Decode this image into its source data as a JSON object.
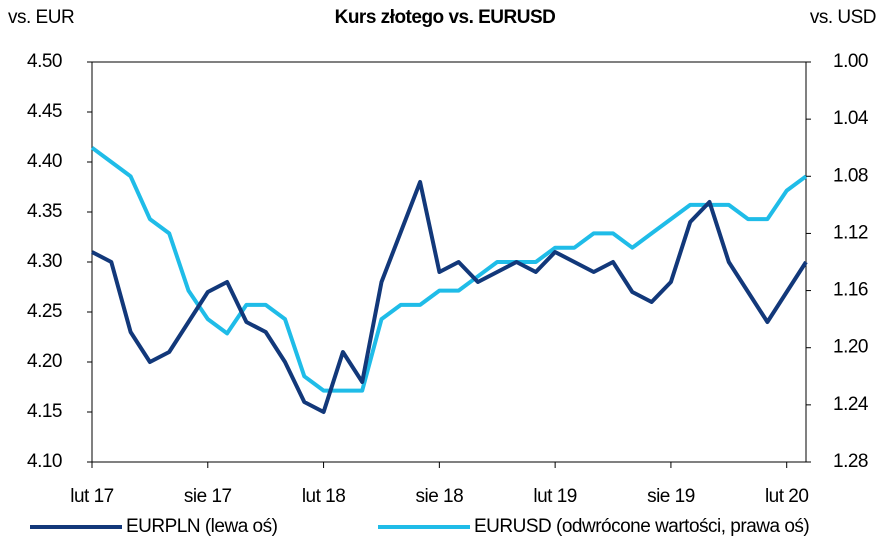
{
  "chart_data": {
    "type": "line",
    "title": "Kurs złotego vs. EURUSD",
    "y_label": "vs. EUR",
    "y2_label": "vs. USD",
    "categories": [
      "lut 17",
      null,
      null,
      null,
      null,
      null,
      "sie 17",
      null,
      null,
      null,
      null,
      null,
      "lut 18",
      null,
      null,
      null,
      null,
      null,
      "sie 18",
      null,
      null,
      null,
      null,
      null,
      "lut 19",
      null,
      null,
      null,
      null,
      null,
      "sie 19",
      null,
      null,
      null,
      null,
      null,
      "lut 20",
      null
    ],
    "series": [
      {
        "name": "EURPLN (lewa oś)",
        "color": "#12387a",
        "axis": "y",
        "values": [
          4.31,
          4.3,
          4.23,
          4.2,
          4.21,
          4.24,
          4.27,
          4.28,
          4.24,
          4.23,
          4.2,
          4.16,
          4.15,
          4.21,
          4.18,
          4.28,
          4.33,
          4.38,
          4.29,
          4.3,
          4.28,
          4.29,
          4.3,
          4.29,
          4.31,
          4.3,
          4.29,
          4.3,
          4.27,
          4.26,
          4.28,
          4.34,
          4.36,
          4.3,
          4.27,
          4.24,
          4.27,
          4.3
        ]
      },
      {
        "name": "EURUSD (odwrócone wartości, prawa oś)",
        "color": "#1fbce8",
        "axis": "y2",
        "values": [
          1.06,
          1.07,
          1.08,
          1.11,
          1.12,
          1.16,
          1.18,
          1.19,
          1.17,
          1.17,
          1.18,
          1.22,
          1.23,
          1.23,
          1.23,
          1.18,
          1.17,
          1.17,
          1.16,
          1.16,
          1.15,
          1.14,
          1.14,
          1.14,
          1.13,
          1.13,
          1.12,
          1.12,
          1.13,
          1.12,
          1.11,
          1.1,
          1.1,
          1.1,
          1.11,
          1.11,
          1.09,
          1.08
        ]
      }
    ],
    "ylim": [
      4.1,
      4.5
    ],
    "yticks": [
      {
        "value": 4.1,
        "label": "4.10"
      },
      4.15,
      {
        "value": 4.2,
        "label": "4.20"
      },
      4.25,
      {
        "value": 4.3,
        "label": "4.30"
      },
      4.35,
      {
        "value": 4.4,
        "label": "4.40"
      },
      4.45,
      {
        "value": 4.5,
        "label": "4.50"
      }
    ],
    "y2lim": [
      1.28,
      1.0
    ],
    "y2ticks": [
      1.28,
      1.24,
      {
        "value": 1.2,
        "label": "1.20"
      },
      1.16,
      1.12,
      1.08,
      1.04,
      {
        "value": 1.0,
        "label": "1.00"
      }
    ],
    "grid": false,
    "legend": "bottom"
  }
}
